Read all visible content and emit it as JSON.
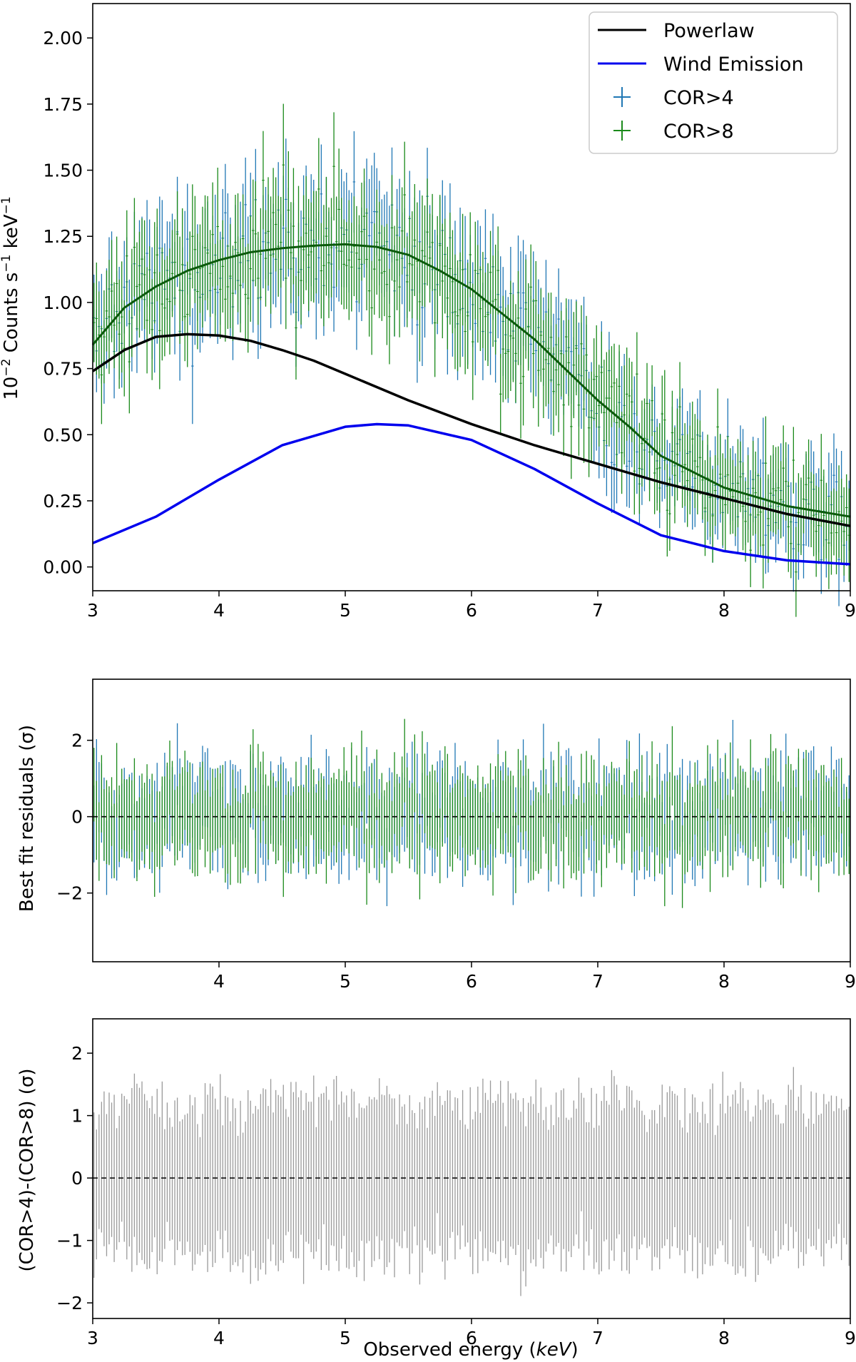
{
  "chart_data": [
    {
      "type": "line",
      "panel": "spectrum",
      "ylabel_prefix": "10",
      "ylabel_exp": "−2",
      "ylabel_mid": " Counts s",
      "ylabel_exp2": "−1",
      "ylabel_unit": " keV",
      "ylabel_exp3": "−1",
      "xlim": [
        3,
        9
      ],
      "ylim": [
        -0.09,
        2.13
      ],
      "xticks": [
        "3",
        "4",
        "5",
        "6",
        "7",
        "8",
        "9"
      ],
      "yticks": [
        "0.00",
        "0.25",
        "0.50",
        "0.75",
        "1.00",
        "1.25",
        "1.50",
        "1.75",
        "2.00"
      ],
      "legend_position": "top-right",
      "legend": [
        "Powerlaw",
        "Wind Emission",
        "COR>4",
        "COR>8"
      ],
      "colors": {
        "powerlaw": "#000000",
        "wind": "#0000ee",
        "cor4": "#1f77b4",
        "cor8": "#1a8a1a",
        "model": "#0b5a0b"
      },
      "series": [
        {
          "name": "Powerlaw",
          "x": [
            3.0,
            3.25,
            3.5,
            3.75,
            4.0,
            4.25,
            4.5,
            4.75,
            5.0,
            5.5,
            6.0,
            6.5,
            7.0,
            7.5,
            8.0,
            8.5,
            9.0
          ],
          "y": [
            0.74,
            0.82,
            0.87,
            0.88,
            0.875,
            0.855,
            0.82,
            0.78,
            0.73,
            0.63,
            0.54,
            0.46,
            0.39,
            0.32,
            0.26,
            0.2,
            0.155
          ]
        },
        {
          "name": "Wind Emission",
          "x": [
            3.0,
            3.5,
            4.0,
            4.5,
            5.0,
            5.25,
            5.5,
            6.0,
            6.5,
            7.0,
            7.5,
            8.0,
            8.5,
            9.0
          ],
          "y": [
            0.09,
            0.19,
            0.33,
            0.46,
            0.53,
            0.54,
            0.535,
            0.48,
            0.37,
            0.24,
            0.12,
            0.06,
            0.025,
            0.01
          ]
        },
        {
          "name": "Total model",
          "x": [
            3.0,
            3.25,
            3.5,
            3.75,
            4.0,
            4.25,
            4.5,
            4.75,
            5.0,
            5.25,
            5.5,
            5.75,
            6.0,
            6.5,
            7.0,
            7.25,
            7.5,
            8.0,
            8.5,
            9.0
          ],
          "y": [
            0.84,
            0.98,
            1.06,
            1.12,
            1.16,
            1.19,
            1.205,
            1.215,
            1.22,
            1.21,
            1.18,
            1.12,
            1.05,
            0.86,
            0.63,
            0.53,
            0.42,
            0.3,
            0.23,
            0.19
          ]
        },
        {
          "name": "COR>4",
          "x_range": [
            3.0,
            9.0
          ],
          "bins": 300
        },
        {
          "name": "COR>8",
          "x_range": [
            3.0,
            9.0
          ],
          "bins": 300
        }
      ]
    },
    {
      "type": "line",
      "panel": "residuals",
      "ylabel": "Best fit residuals (σ)",
      "xlim": [
        3,
        9
      ],
      "ylim": [
        -3.8,
        3.6
      ],
      "xticks": [
        "4",
        "5",
        "6",
        "7",
        "8",
        "9"
      ],
      "yticks": [
        "−2",
        "0",
        "2"
      ],
      "reference_line": 0
    },
    {
      "type": "line",
      "panel": "difference",
      "ylabel": "(COR>4)-(COR>8) (σ)",
      "xlabel_main": "Observed energy (",
      "xlabel_unit": "keV",
      "xlabel_close": ")",
      "xlim": [
        3,
        9
      ],
      "ylim": [
        -2.25,
        2.55
      ],
      "xticks": [
        "3",
        "4",
        "5",
        "6",
        "7",
        "8",
        "9"
      ],
      "yticks": [
        "−2",
        "−1",
        "0",
        "1",
        "2"
      ],
      "reference_line": 0,
      "color": "#9a9a9a"
    }
  ]
}
